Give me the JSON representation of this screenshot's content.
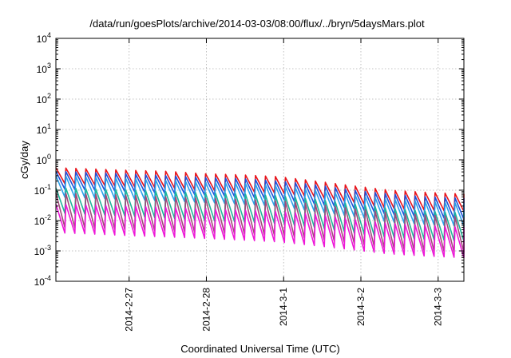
{
  "chart_data": {
    "type": "line",
    "title": "/data/run/goesPlots/archive/2014-03-03/08:00/flux/../bryn/5daysMars.plot",
    "xlabel": "Coordinated Universal Time (UTC)",
    "ylabel": "cGy/day",
    "y_scale": "log",
    "ylim": [
      0.0001,
      10000
    ],
    "y_ticks": [
      {
        "base": "10",
        "exp": "-4",
        "value": 0.0001
      },
      {
        "base": "10",
        "exp": "-3",
        "value": 0.001
      },
      {
        "base": "10",
        "exp": "-2",
        "value": 0.01
      },
      {
        "base": "10",
        "exp": "-1",
        "value": 0.1
      },
      {
        "base": "10",
        "exp": "0",
        "value": 1
      },
      {
        "base": "10",
        "exp": "1",
        "value": 10
      },
      {
        "base": "10",
        "exp": "2",
        "value": 100
      },
      {
        "base": "10",
        "exp": "3",
        "value": 1000
      },
      {
        "base": "10",
        "exp": "4",
        "value": 10000
      }
    ],
    "xlim": [
      "2014-02-26 01:15",
      "2014-03-03 08:00"
    ],
    "x_ticks": [
      {
        "label": "2014-2-27",
        "value": "2014-02-27 00:00"
      },
      {
        "label": "2014-2-28",
        "value": "2014-02-28 00:00"
      },
      {
        "label": "2014-3-1",
        "value": "2014-03-01 00:00"
      },
      {
        "label": "2014-3-2",
        "value": "2014-03-02 00:00"
      },
      {
        "label": "2014-3-3",
        "value": "2014-03-03 00:00"
      }
    ],
    "grid": true,
    "cycle_hours": 3.1,
    "series": [
      {
        "color": "#e8141b",
        "peaks": [
          0.55,
          0.5,
          0.45,
          0.42,
          0.35,
          0.32,
          0.28,
          0.2,
          0.14,
          0.1,
          0.085,
          0.075
        ],
        "troughs": [
          0.17,
          0.15,
          0.13,
          0.12,
          0.1,
          0.09,
          0.08,
          0.06,
          0.04,
          0.025,
          0.022,
          0.02
        ]
      },
      {
        "color": "#1f4fd6",
        "peaks": [
          0.42,
          0.38,
          0.34,
          0.3,
          0.26,
          0.24,
          0.2,
          0.15,
          0.1,
          0.075,
          0.06,
          0.055
        ],
        "troughs": [
          0.11,
          0.1,
          0.09,
          0.08,
          0.07,
          0.06,
          0.05,
          0.035,
          0.025,
          0.016,
          0.013,
          0.011
        ]
      },
      {
        "color": "#2aa0ea",
        "peaks": [
          0.3,
          0.27,
          0.24,
          0.21,
          0.18,
          0.17,
          0.14,
          0.1,
          0.07,
          0.05,
          0.042,
          0.038
        ],
        "troughs": [
          0.06,
          0.055,
          0.05,
          0.045,
          0.04,
          0.035,
          0.03,
          0.02,
          0.014,
          0.009,
          0.0075,
          0.0065
        ]
      },
      {
        "color": "#1fb59a",
        "peaks": [
          0.12,
          0.11,
          0.1,
          0.09,
          0.08,
          0.075,
          0.065,
          0.05,
          0.035,
          0.025,
          0.02,
          0.018
        ],
        "troughs": [
          0.018,
          0.016,
          0.014,
          0.012,
          0.01,
          0.009,
          0.008,
          0.006,
          0.004,
          0.0028,
          0.0024,
          0.0021
        ]
      },
      {
        "color": "#a04a7a",
        "peaks": [
          0.08,
          0.075,
          0.068,
          0.06,
          0.055,
          0.05,
          0.045,
          0.035,
          0.025,
          0.018,
          0.015,
          0.013
        ],
        "troughs": [
          0.006,
          0.0055,
          0.005,
          0.0045,
          0.004,
          0.0036,
          0.0032,
          0.0025,
          0.0018,
          0.0012,
          0.001,
          0.0009
        ]
      },
      {
        "color": "#ee18d8",
        "peaks": [
          0.035,
          0.032,
          0.03,
          0.027,
          0.024,
          0.022,
          0.02,
          0.016,
          0.011,
          0.008,
          0.0068,
          0.006
        ],
        "troughs": [
          0.004,
          0.0036,
          0.0032,
          0.0029,
          0.0026,
          0.0023,
          0.002,
          0.0015,
          0.0011,
          0.0008,
          0.00068,
          0.0006
        ]
      }
    ]
  }
}
